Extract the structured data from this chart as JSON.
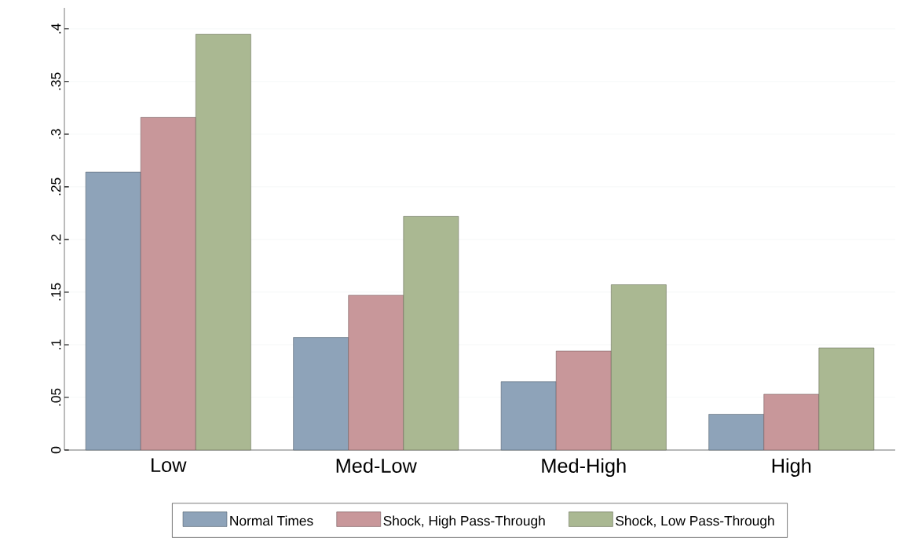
{
  "chart_data": {
    "type": "bar",
    "categories": [
      "Low",
      "Med-Low",
      "Med-High",
      "High"
    ],
    "series": [
      {
        "name": "Normal Times",
        "color": "#8ea3b9",
        "values": [
          0.264,
          0.107,
          0.065,
          0.034
        ]
      },
      {
        "name": "Shock, High Pass-Through",
        "color": "#c8979a",
        "values": [
          0.316,
          0.147,
          0.094,
          0.053
        ]
      },
      {
        "name": "Shock, Low Pass-Through",
        "color": "#aab892",
        "values": [
          0.395,
          0.222,
          0.157,
          0.097
        ]
      }
    ],
    "ylim": [
      0,
      0.42
    ],
    "yticks": [
      {
        "value": 0,
        "label": "0"
      },
      {
        "value": 0.05,
        "label": ".05"
      },
      {
        "value": 0.1,
        "label": ".1"
      },
      {
        "value": 0.15,
        "label": ".15"
      },
      {
        "value": 0.2,
        "label": ".2"
      },
      {
        "value": 0.25,
        "label": ".25"
      },
      {
        "value": 0.3,
        "label": ".3"
      },
      {
        "value": 0.35,
        "label": ".35"
      },
      {
        "value": 0.4,
        "label": ".4"
      }
    ],
    "grid": "y",
    "legend": "bottom"
  }
}
